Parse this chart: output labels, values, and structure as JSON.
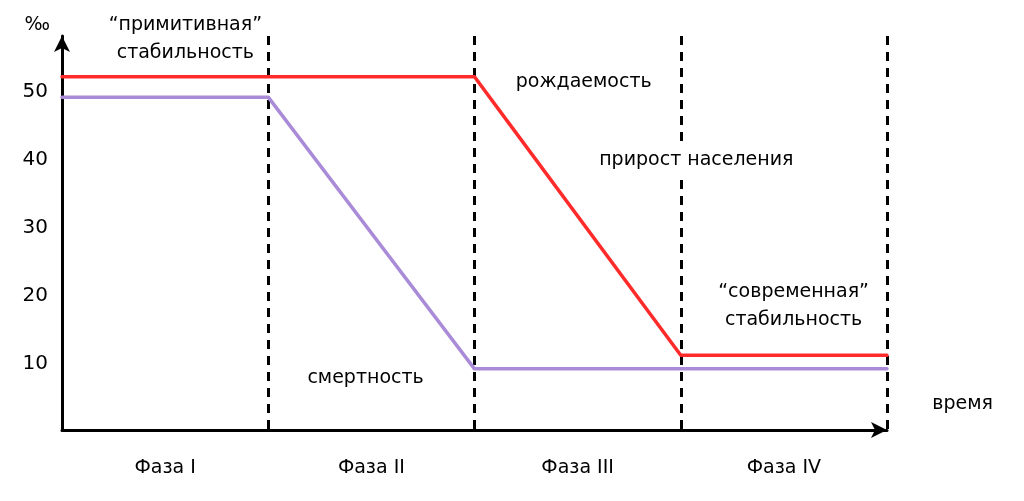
{
  "chart_data": {
    "type": "line",
    "ylabel": "‰",
    "xlabel": "время",
    "categories": [
      null,
      "Фаза I",
      null,
      "Фаза II",
      null,
      "Фаза III",
      null,
      "Фаза IV",
      null
    ],
    "ylim": [
      0,
      58
    ],
    "yticks": [
      10,
      20,
      30,
      40,
      50
    ],
    "series": [
      {
        "color": "#ff2b2b",
        "values": [
          52,
          null,
          null,
          null,
          52,
          null,
          11,
          null,
          11
        ]
      },
      {
        "color": "#a98bd8",
        "values": [
          49,
          null,
          49,
          null,
          9,
          null,
          null,
          null,
          9
        ]
      }
    ],
    "annotations": [
      "“примитивная”\nстабильность",
      "рождаемость",
      "прирост населения",
      "смертность",
      "“современная”\nстабильность"
    ],
    "grid": "x",
    "marker": "none",
    "line_style": "solid"
  }
}
